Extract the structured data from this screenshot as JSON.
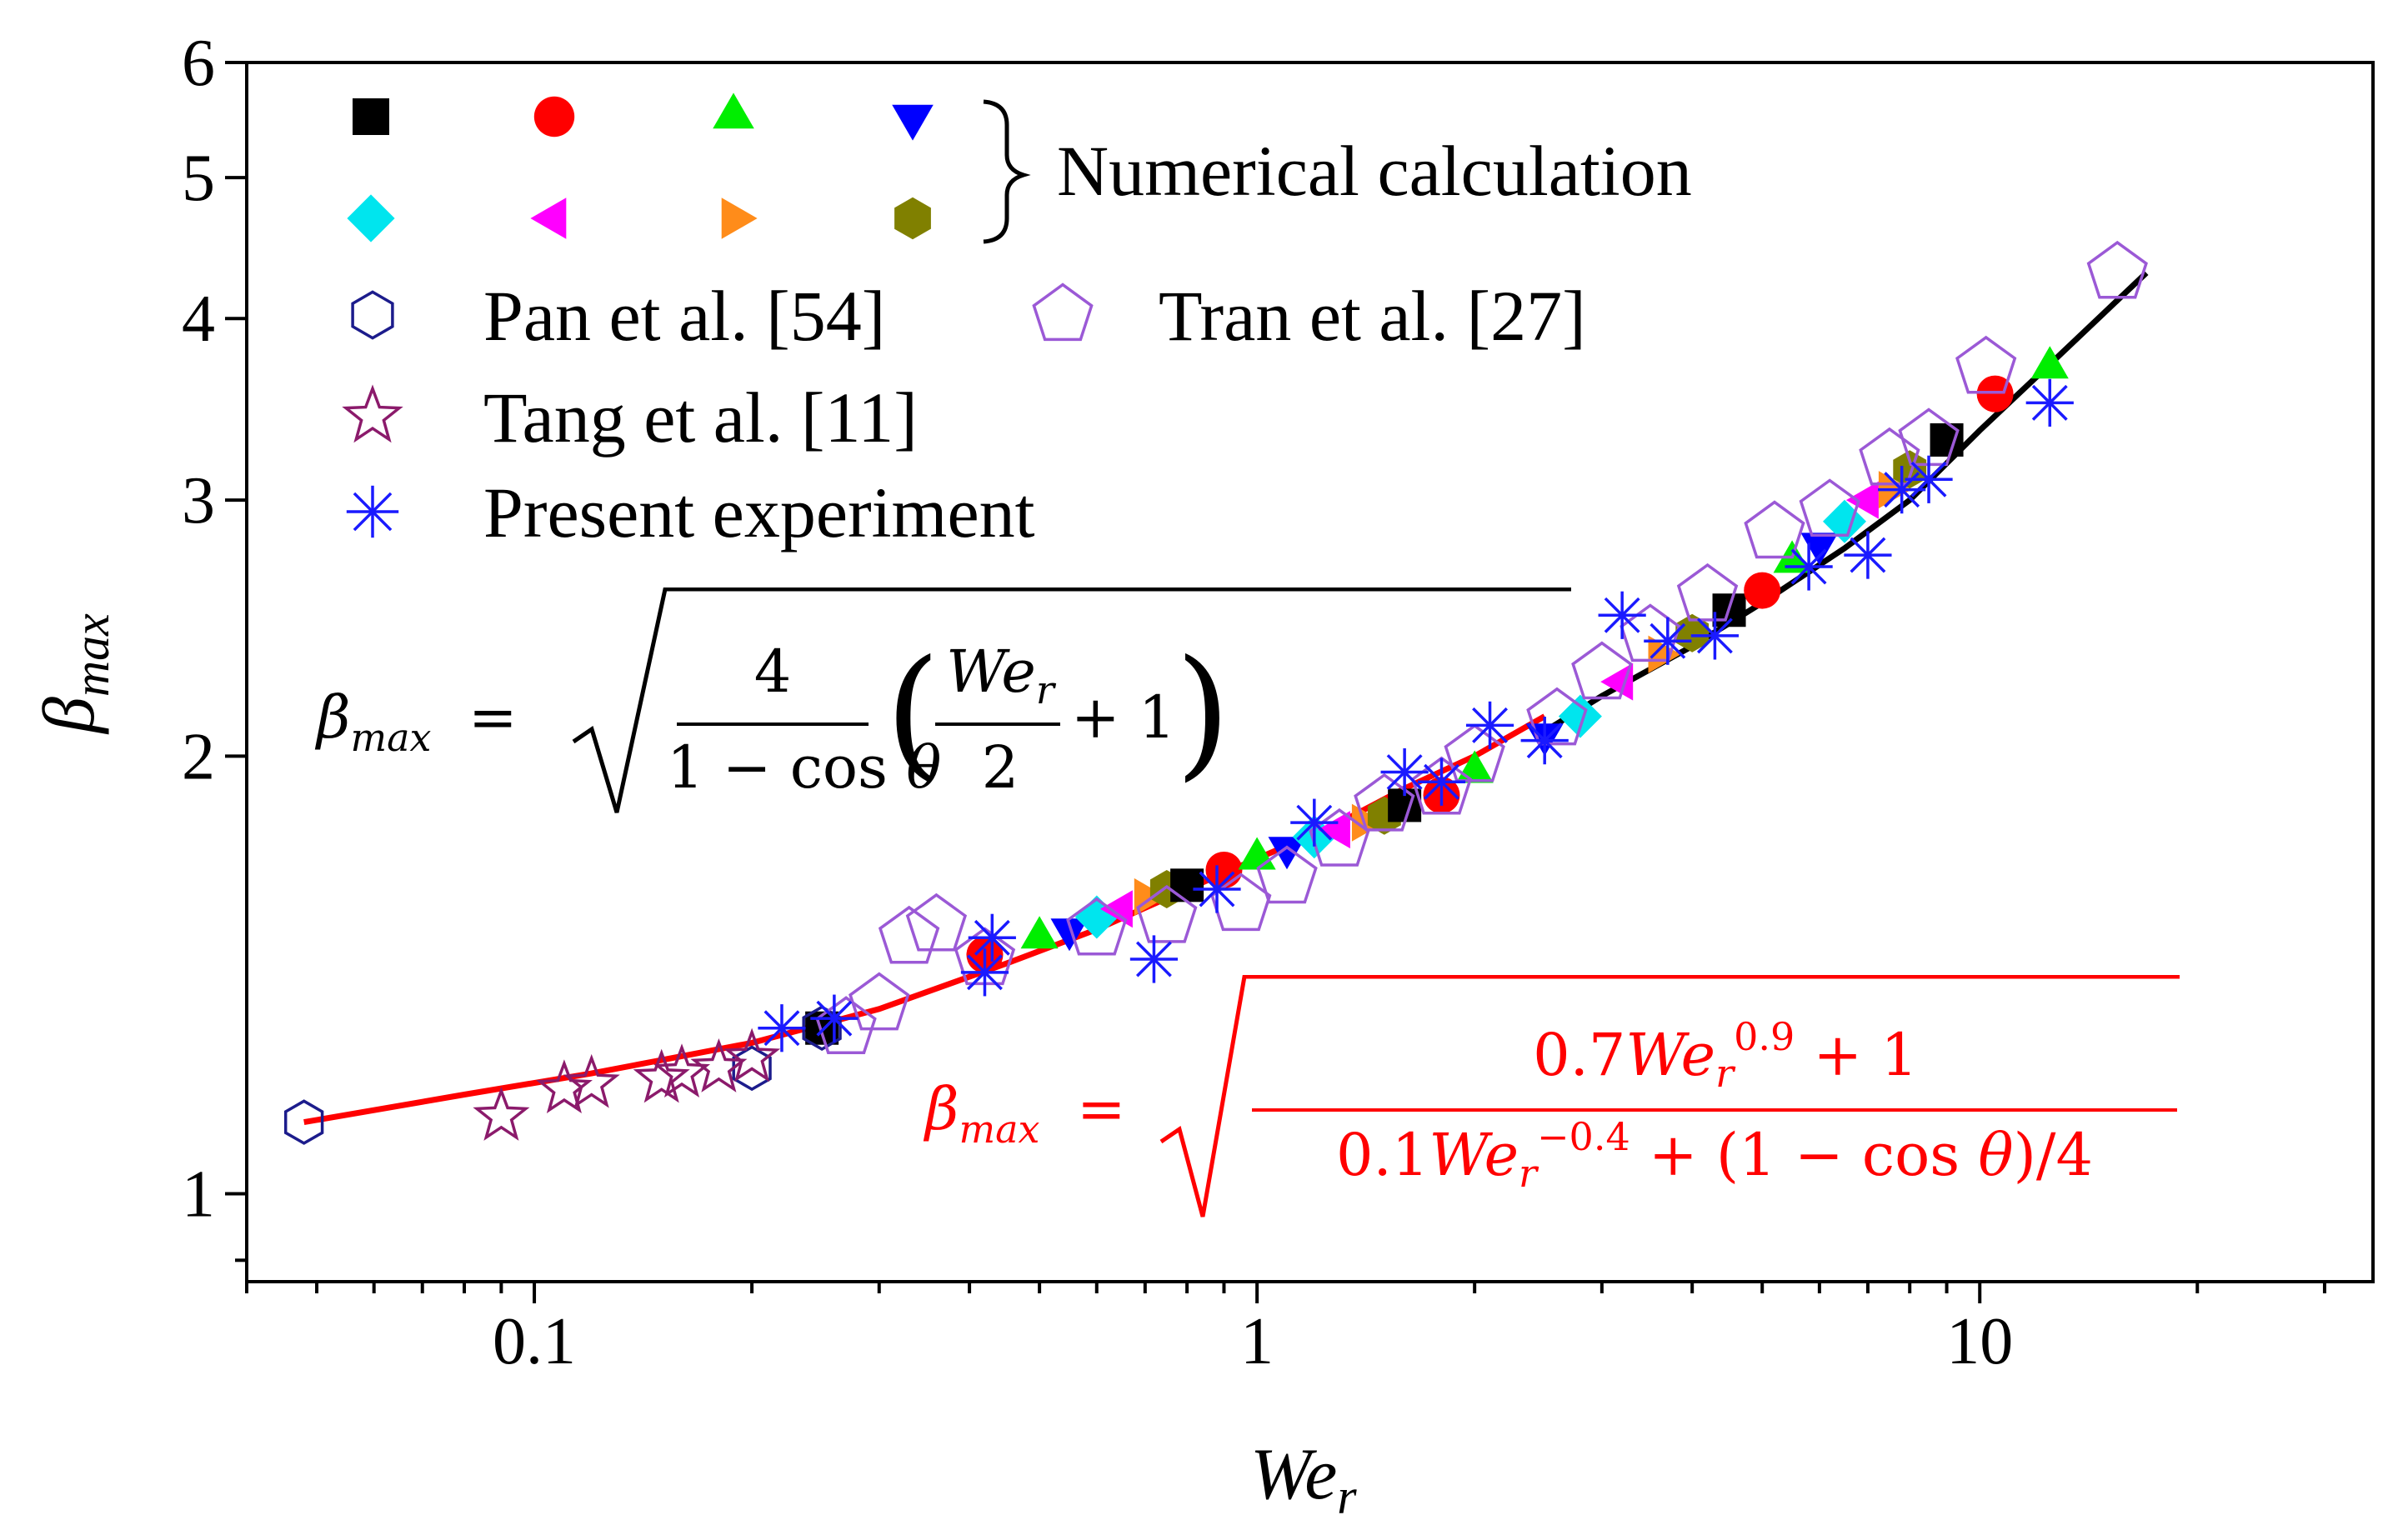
{
  "chart_data": {
    "type": "scatter",
    "x_scale": "log",
    "y_scale": "log",
    "xlim": [
      0.04,
      35
    ],
    "ylim": [
      0.87,
      6
    ],
    "x_ticks": [
      0.1,
      1,
      10
    ],
    "x_tick_labels": [
      "0.1",
      "1",
      "10"
    ],
    "y_ticks": [
      1,
      2,
      3,
      4,
      5,
      6
    ],
    "y_tick_labels": [
      "1",
      "2",
      "3",
      "4",
      "5",
      "6"
    ],
    "xlabel": "We_r",
    "ylabel": "β_max",
    "legend": {
      "placement": "top-left",
      "numerical_label": "Numerical calculation",
      "numerical_markers": [
        {
          "shape": "square",
          "color": "#000000"
        },
        {
          "shape": "circle",
          "color": "#ff0000"
        },
        {
          "shape": "triangle-up",
          "color": "#00ee00"
        },
        {
          "shape": "triangle-down",
          "color": "#0000ff"
        },
        {
          "shape": "diamond",
          "color": "#00e5ee"
        },
        {
          "shape": "triangle-left",
          "color": "#ff00ff"
        },
        {
          "shape": "triangle-right",
          "color": "#ff8c1a"
        },
        {
          "shape": "hexagon",
          "color": "#808000"
        }
      ],
      "entries": [
        {
          "name": "Pan et al. [54]",
          "marker": "hexagon-open",
          "color": "#1c1c8c"
        },
        {
          "name": "Tran et al. [27]",
          "marker": "pentagon-open",
          "color": "#9b59d6"
        },
        {
          "name": "Tang et al. [11]",
          "marker": "star-open",
          "color": "#8b1a6b"
        },
        {
          "name": "Present experiment",
          "marker": "asterisk",
          "color": "#1a1aff"
        }
      ]
    },
    "equations": {
      "black": {
        "lhs": "β_max =",
        "num": "4",
        "den_a": "1 − cos θ",
        "inner_num": "We_r",
        "inner_den": "2",
        "inner_tail": "+ 1",
        "color": "#000000"
      },
      "red": {
        "lhs": "β_max =",
        "num": "0.7We_r^0.9 + 1",
        "den": "0.1We_r^−0.4 + (1 − cos θ)/4",
        "color": "#ff0000"
      }
    },
    "series": [
      {
        "name": "Numerical calculation",
        "type": "scatter",
        "x": [
          0.25,
          0.42,
          0.5,
          0.55,
          0.6,
          0.65,
          0.7,
          0.75,
          0.8,
          0.9,
          1.0,
          1.1,
          1.2,
          1.3,
          1.4,
          1.5,
          1.6,
          1.8,
          2.0,
          2.5,
          2.8,
          3.2,
          3.6,
          4.0,
          4.5,
          5.0,
          5.5,
          6.0,
          6.5,
          7.0,
          7.5,
          8.0,
          9.0,
          10.5,
          12.5
        ],
        "y": [
          1.3,
          1.46,
          1.5,
          1.52,
          1.55,
          1.57,
          1.6,
          1.62,
          1.63,
          1.67,
          1.7,
          1.73,
          1.76,
          1.78,
          1.8,
          1.82,
          1.85,
          1.88,
          1.95,
          2.07,
          2.13,
          2.25,
          2.35,
          2.43,
          2.52,
          2.6,
          2.72,
          2.8,
          2.9,
          3.0,
          3.05,
          3.15,
          3.3,
          3.55,
          3.7
        ]
      },
      {
        "name": "Pan et al. [54]",
        "type": "scatter",
        "x": [
          0.048,
          0.2,
          0.25
        ],
        "y": [
          1.12,
          1.22,
          1.3
        ]
      },
      {
        "name": "Tran et al. [27]",
        "type": "scatter",
        "x": [
          0.27,
          0.3,
          0.33,
          0.36,
          0.42,
          0.6,
          0.75,
          0.95,
          1.1,
          1.3,
          1.5,
          1.8,
          2.0,
          2.6,
          3.0,
          3.5,
          4.2,
          5.2,
          6.2,
          7.5,
          8.5,
          10.2,
          15.5
        ],
        "y": [
          1.3,
          1.35,
          1.5,
          1.53,
          1.45,
          1.52,
          1.55,
          1.58,
          1.65,
          1.75,
          1.85,
          1.9,
          2.0,
          2.12,
          2.28,
          2.42,
          2.58,
          2.85,
          2.95,
          3.2,
          3.3,
          3.7,
          4.3
        ]
      },
      {
        "name": "Tang et al. [11]",
        "type": "scatter",
        "x": [
          0.09,
          0.11,
          0.12,
          0.15,
          0.16,
          0.18,
          0.2
        ],
        "y": [
          1.13,
          1.18,
          1.19,
          1.2,
          1.21,
          1.22,
          1.24
        ]
      },
      {
        "name": "Present experiment",
        "type": "scatter",
        "x": [
          0.22,
          0.26,
          0.42,
          0.43,
          0.72,
          0.88,
          1.2,
          1.6,
          1.8,
          2.1,
          2.5,
          3.2,
          3.7,
          4.3,
          5.8,
          7.0,
          7.8,
          8.5,
          12.5
        ],
        "y": [
          1.3,
          1.32,
          1.42,
          1.5,
          1.45,
          1.62,
          1.8,
          1.95,
          1.92,
          2.1,
          2.05,
          2.5,
          2.4,
          2.42,
          2.7,
          2.75,
          3.05,
          3.1,
          3.5
        ]
      },
      {
        "name": "Equation (red)",
        "type": "line",
        "color": "#ff0000",
        "x": [
          0.048,
          0.08,
          0.12,
          0.2,
          0.3,
          0.45,
          0.6,
          0.8,
          1.0,
          1.3,
          1.6,
          2.0,
          2.5
        ],
        "y": [
          1.12,
          1.17,
          1.21,
          1.27,
          1.34,
          1.44,
          1.52,
          1.62,
          1.7,
          1.8,
          1.9,
          2.0,
          2.13
        ]
      },
      {
        "name": "Equation (black)",
        "type": "line",
        "color": "#000000",
        "x": [
          2.5,
          3.0,
          4.0,
          5.0,
          6.5,
          8.0,
          10.0,
          12.5,
          17.0
        ],
        "y": [
          2.08,
          2.2,
          2.38,
          2.55,
          2.78,
          3.0,
          3.35,
          3.72,
          4.3
        ]
      }
    ]
  }
}
